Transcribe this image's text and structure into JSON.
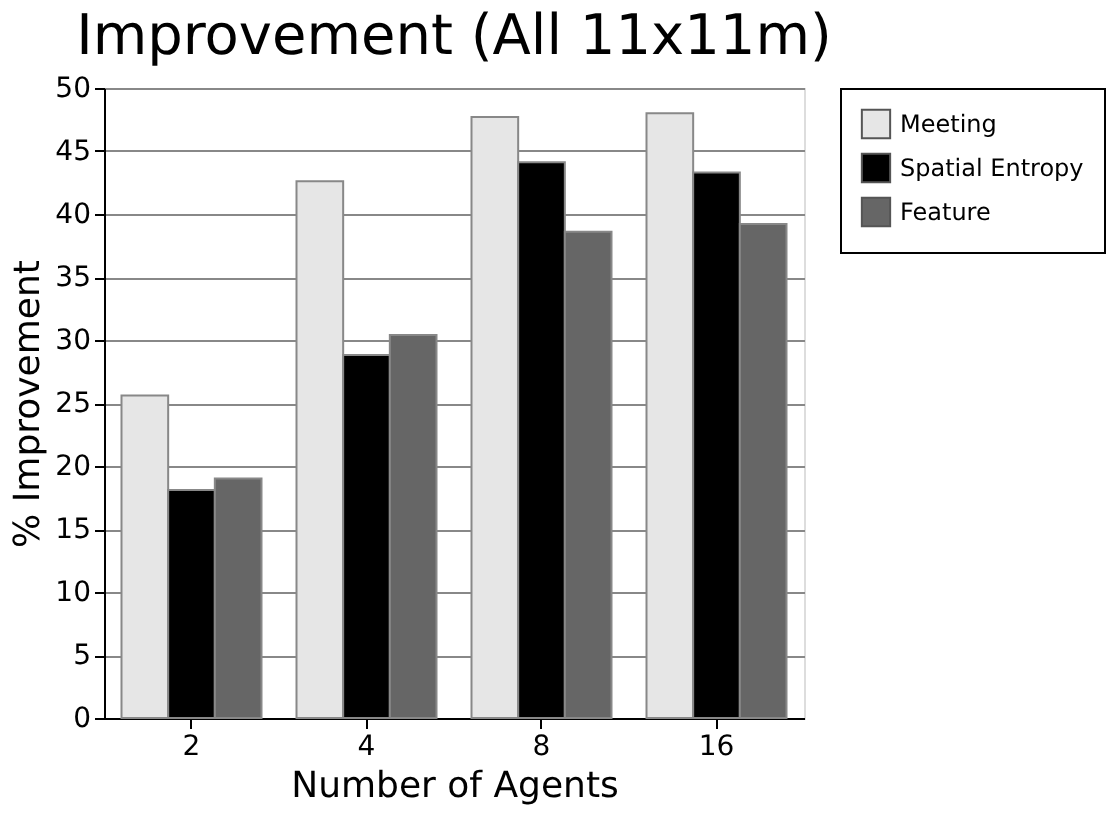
{
  "chart_data": {
    "type": "bar",
    "title": "Improvement (All 11x11m)",
    "xlabel": "Number of Agents",
    "ylabel": "% Improvement",
    "categories": [
      "2",
      "4",
      "8",
      "16"
    ],
    "series": [
      {
        "name": "Meeting",
        "color": "#e6e6e6",
        "values": [
          25.6,
          42.6,
          47.7,
          48.0
        ]
      },
      {
        "name": "Spatial Entropy",
        "color": "#000000",
        "values": [
          18.1,
          28.8,
          44.1,
          43.3
        ]
      },
      {
        "name": "Feature",
        "color": "#666666",
        "values": [
          19.0,
          30.4,
          38.6,
          39.2
        ]
      }
    ],
    "ylim": [
      0,
      50
    ],
    "yticks": [
      0,
      5,
      10,
      15,
      20,
      25,
      30,
      35,
      40,
      45,
      50
    ],
    "grid": "y",
    "legend": "right"
  }
}
